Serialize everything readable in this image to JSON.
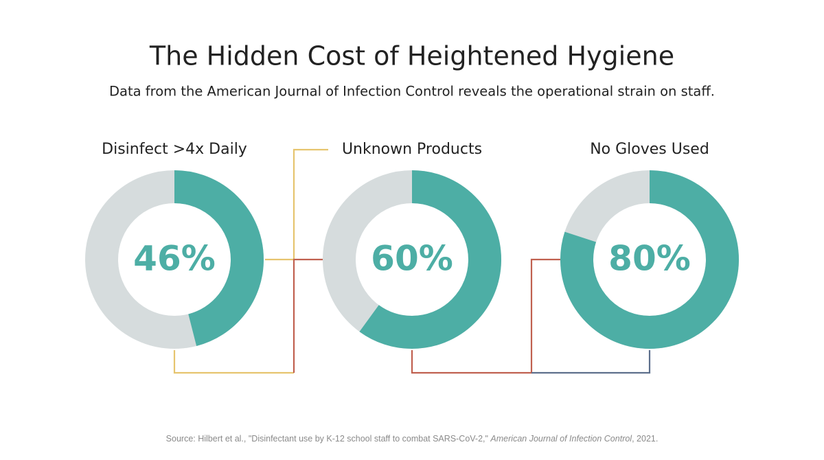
{
  "chart_data": {
    "type": "donut",
    "title": "The Hidden Cost of Heightened Hygiene",
    "subtitle": "Data from the American Journal of Infection Control reveals the operational strain on staff.",
    "categories": [
      "Disinfect >4x Daily",
      "Unknown Products",
      "No Gloves Used"
    ],
    "values": [
      46,
      60,
      80
    ],
    "value_labels": [
      "46%",
      "60%",
      "80%"
    ],
    "color": "#4daea5",
    "rest_color": "#d6dcdd",
    "source": [
      "Source: Hilbert et al., \"Disinfectant use by K-12 school staff to combat SARS-CoV-2,\" ",
      "American Journal of Infection Control",
      ", 2021."
    ]
  }
}
